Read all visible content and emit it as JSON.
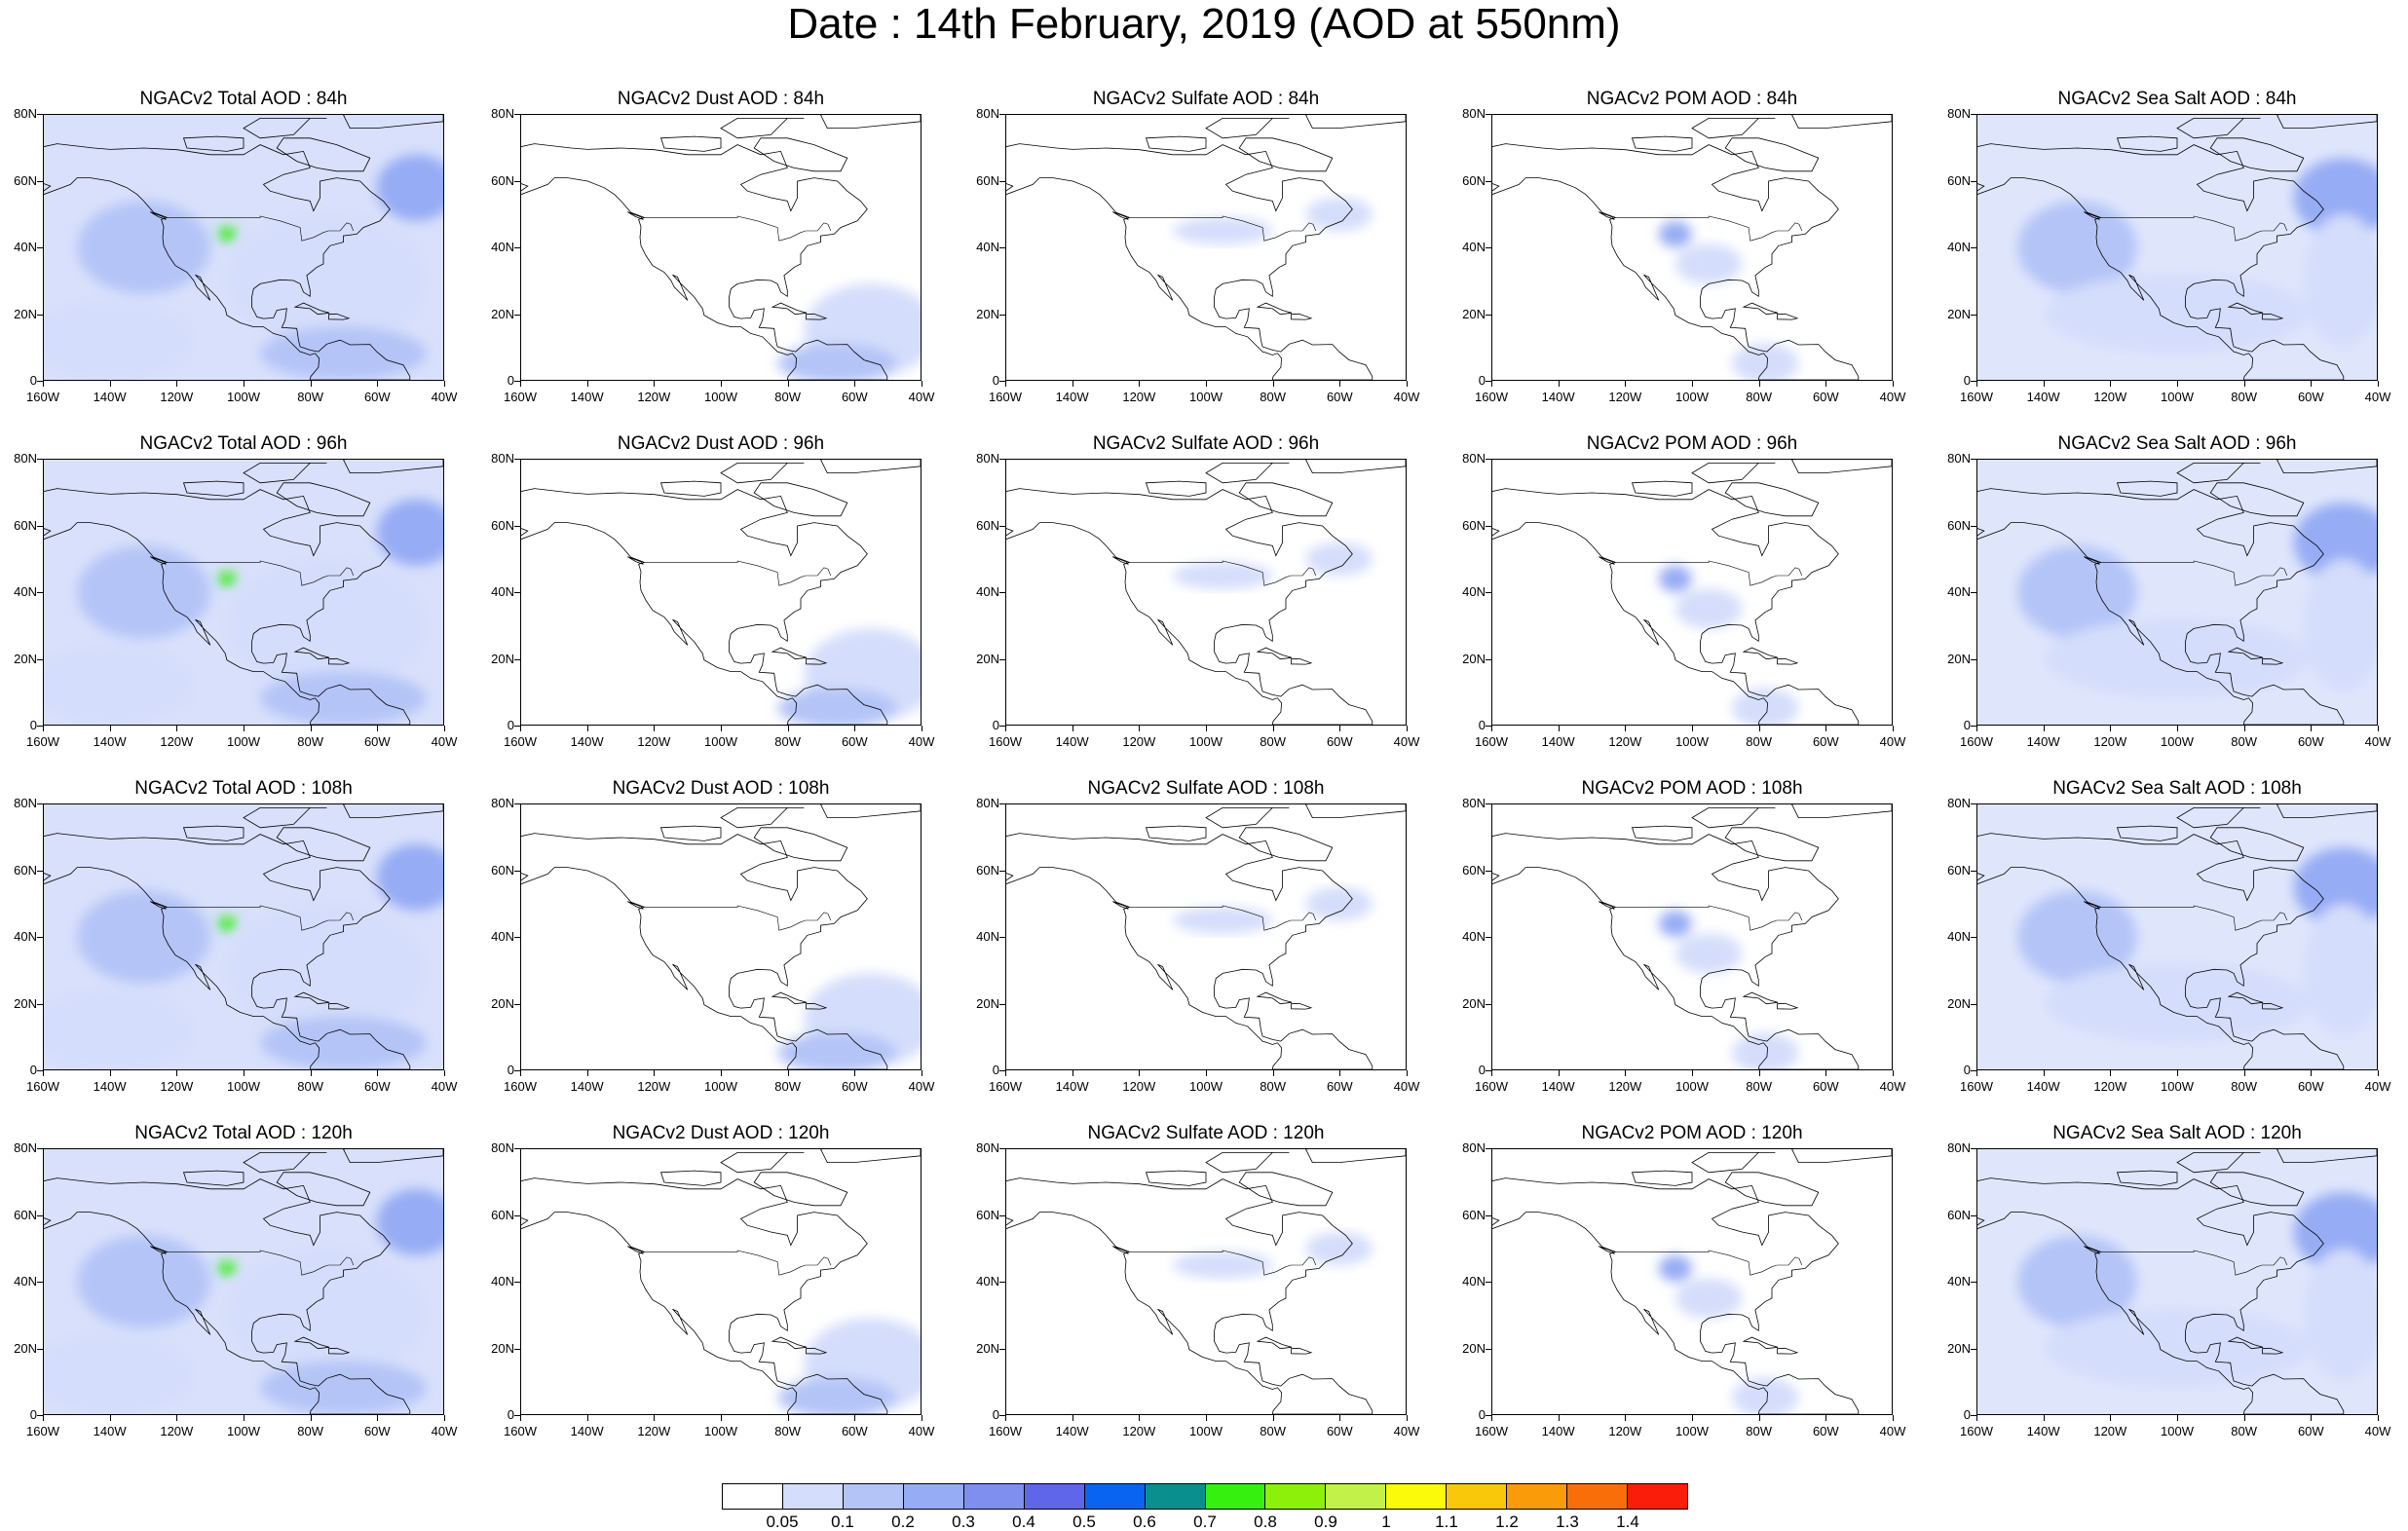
{
  "page": {
    "title": "Date : 14th February, 2019 (AOD at 550nm)"
  },
  "axes": {
    "y_ticks": [
      "80N",
      "60N",
      "40N",
      "20N",
      "0"
    ],
    "x_ticks": [
      "160W",
      "140W",
      "120W",
      "100W",
      "80W",
      "60W",
      "40W"
    ],
    "lon_range": [
      -160,
      -40
    ],
    "lat_range": [
      0,
      80
    ]
  },
  "colorbar": {
    "colors": [
      "#ffffff",
      "#d4ddfb",
      "#b4c4f7",
      "#96acf4",
      "#7f8ff0",
      "#5f66ea",
      "#0a64f2",
      "#0a8f8f",
      "#36f010",
      "#8df00a",
      "#c2f24a",
      "#fafa0a",
      "#fac80a",
      "#fa9b0a",
      "#fa6e0a",
      "#fa1e0a"
    ],
    "labels": [
      "0.05",
      "0.1",
      "0.2",
      "0.3",
      "0.4",
      "0.5",
      "0.6",
      "0.7",
      "0.8",
      "0.9",
      "1",
      "1.1",
      "1.2",
      "1.3",
      "1.4"
    ]
  },
  "species": [
    "total",
    "dust",
    "sulfate",
    "pom",
    "seasalt"
  ],
  "panels": [
    [
      {
        "title": "NGACv2 Total AOD : 84h"
      },
      {
        "title": "NGACv2 Dust AOD : 84h"
      },
      {
        "title": "NGACv2 Sulfate AOD : 84h"
      },
      {
        "title": "NGACv2 POM AOD : 84h"
      },
      {
        "title": "NGACv2 Sea Salt AOD : 84h"
      }
    ],
    [
      {
        "title": "NGACv2 Total AOD : 96h"
      },
      {
        "title": "NGACv2 Dust AOD : 96h"
      },
      {
        "title": "NGACv2 Sulfate AOD : 96h"
      },
      {
        "title": "NGACv2 POM AOD : 96h"
      },
      {
        "title": "NGACv2 Sea Salt AOD : 96h"
      }
    ],
    [
      {
        "title": "NGACv2 Total AOD : 108h"
      },
      {
        "title": "NGACv2 Dust AOD : 108h"
      },
      {
        "title": "NGACv2 Sulfate AOD : 108h"
      },
      {
        "title": "NGACv2 POM AOD : 108h"
      },
      {
        "title": "NGACv2 Sea Salt AOD : 108h"
      }
    ],
    [
      {
        "title": "NGACv2 Total AOD : 120h"
      },
      {
        "title": "NGACv2 Dust AOD : 120h"
      },
      {
        "title": "NGACv2 Sulfate AOD : 120h"
      },
      {
        "title": "NGACv2 POM AOD : 120h"
      },
      {
        "title": "NGACv2 Sea Salt  AOD : 120h"
      }
    ]
  ],
  "features": {
    "total": [
      {
        "lon": -130,
        "lat": 40,
        "rx": 20,
        "ry": 14,
        "level": 2
      },
      {
        "lon": -48,
        "lat": 58,
        "rx": 12,
        "ry": 10,
        "level": 3
      },
      {
        "lon": -75,
        "lat": 30,
        "rx": 30,
        "ry": 20,
        "level": 1
      },
      {
        "lon": -105,
        "lat": 44,
        "rx": 3,
        "ry": 2,
        "level": 8
      },
      {
        "lon": -140,
        "lat": 12,
        "rx": 25,
        "ry": 12,
        "level": 1
      },
      {
        "lon": -70,
        "lat": 8,
        "rx": 25,
        "ry": 8,
        "level": 2
      }
    ],
    "dust": [
      {
        "lon": -55,
        "lat": 15,
        "rx": 20,
        "ry": 14,
        "level": 1
      },
      {
        "lon": -65,
        "lat": 5,
        "rx": 18,
        "ry": 6,
        "level": 2
      }
    ],
    "sulfate": [
      {
        "lon": -95,
        "lat": 45,
        "rx": 15,
        "ry": 4,
        "level": 1
      },
      {
        "lon": -60,
        "lat": 50,
        "rx": 10,
        "ry": 5,
        "level": 1
      }
    ],
    "pom": [
      {
        "lon": -105,
        "lat": 44,
        "rx": 5,
        "ry": 4,
        "level": 3
      },
      {
        "lon": -78,
        "lat": 5,
        "rx": 10,
        "ry": 6,
        "level": 1
      },
      {
        "lon": -95,
        "lat": 35,
        "rx": 10,
        "ry": 6,
        "level": 1
      }
    ],
    "seasalt": [
      {
        "lon": -130,
        "lat": 40,
        "rx": 18,
        "ry": 14,
        "level": 2
      },
      {
        "lon": -50,
        "lat": 55,
        "rx": 15,
        "ry": 12,
        "level": 3
      },
      {
        "lon": -100,
        "lat": 20,
        "rx": 40,
        "ry": 12,
        "level": 1
      },
      {
        "lon": -50,
        "lat": 30,
        "rx": 12,
        "ry": 20,
        "level": 1
      }
    ]
  }
}
